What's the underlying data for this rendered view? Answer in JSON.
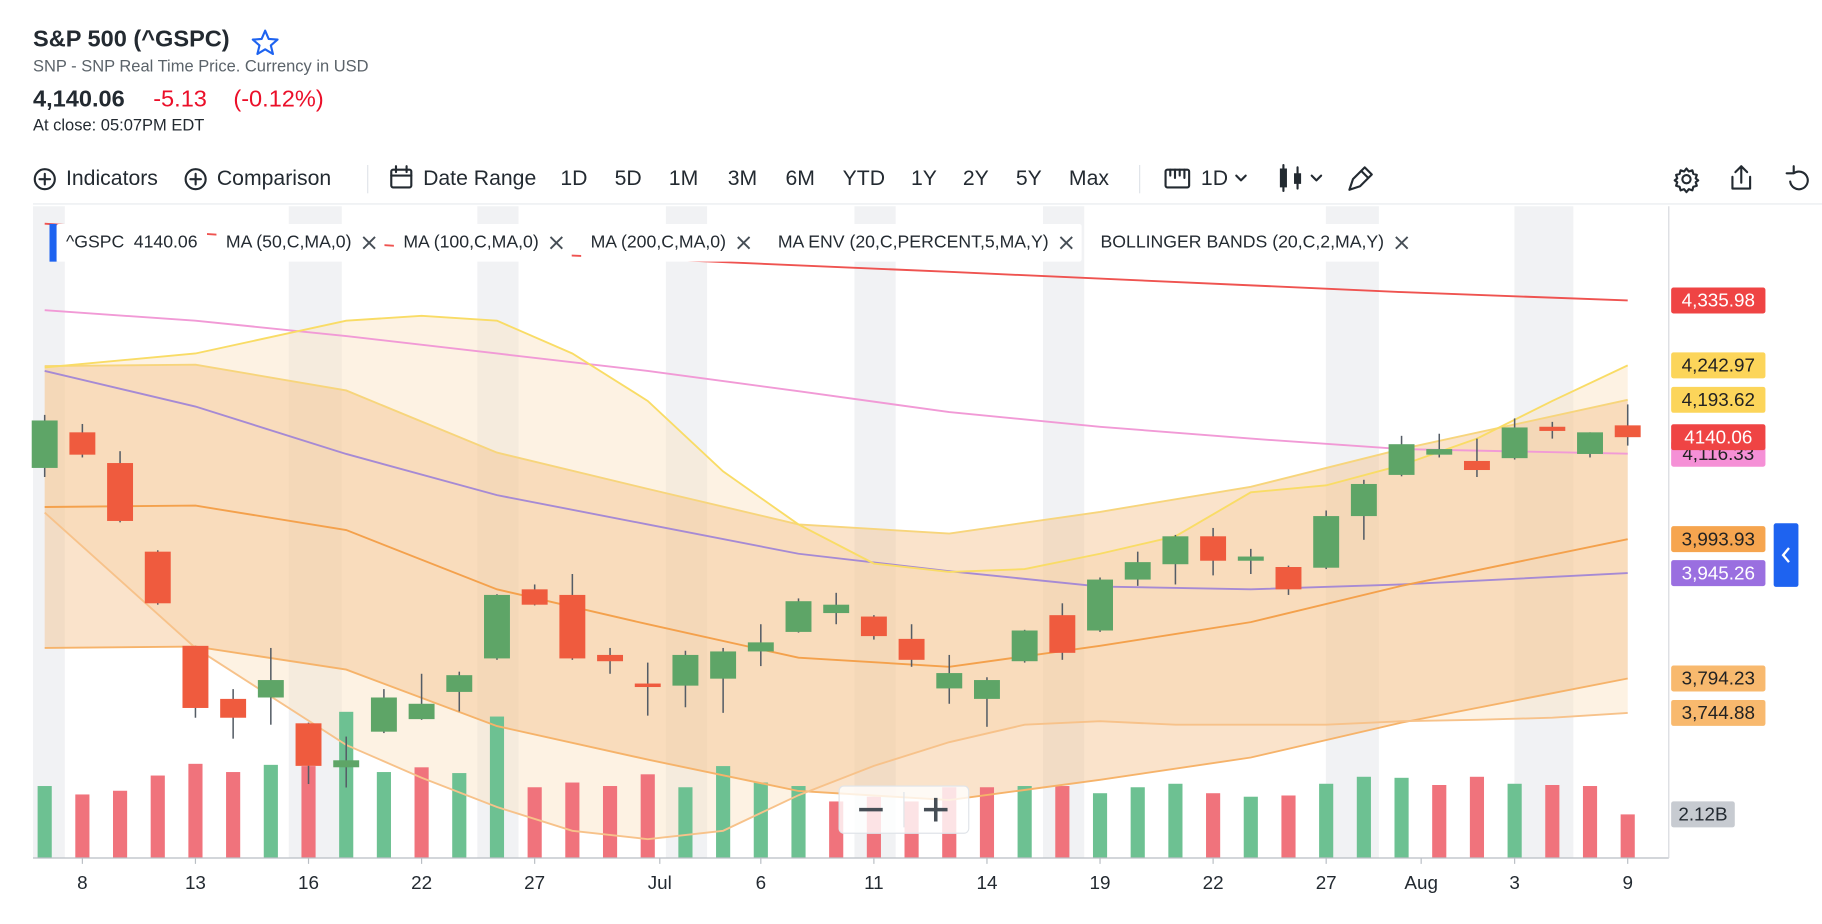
{
  "header": {
    "title": "S&P 500 (^GSPC)",
    "subtitle": "SNP - SNP Real Time Price. Currency in USD",
    "price": "4,140.06",
    "change": "-5.13",
    "change_percent": "(-0.12%)",
    "close_time": "At close: 05:07PM EDT"
  },
  "toolbar": {
    "indicators": "Indicators",
    "comparison": "Comparison",
    "date_range": "Date Range",
    "ranges": [
      "1D",
      "5D",
      "1M",
      "3M",
      "6M",
      "YTD",
      "1Y",
      "2Y",
      "5Y",
      "Max"
    ],
    "interval": "1D"
  },
  "chart_data": {
    "type": "candlestick",
    "symbol": "^GSPC",
    "xlim": [
      -0.31,
      43.09
    ],
    "ylim": [
      3537,
      4471
    ],
    "xticks": [
      {
        "value": 1,
        "label": "8"
      },
      {
        "value": 4,
        "label": "13"
      },
      {
        "value": 7,
        "label": "16"
      },
      {
        "value": 10,
        "label": "22"
      },
      {
        "value": 13,
        "label": "27"
      },
      {
        "value": 16.32,
        "label": "Jul"
      },
      {
        "value": 19,
        "label": "6"
      },
      {
        "value": 22,
        "label": "11"
      },
      {
        "value": 25,
        "label": "14"
      },
      {
        "value": 28,
        "label": "19"
      },
      {
        "value": 31,
        "label": "22"
      },
      {
        "value": 34,
        "label": "27"
      },
      {
        "value": 36.52,
        "label": "Aug"
      },
      {
        "value": 39,
        "label": "3"
      },
      {
        "value": 42,
        "label": "9"
      }
    ],
    "up_color": "#5ea567",
    "down_color": "#ef5b3e",
    "candles": {
      "open": [
        4096,
        4147,
        4103,
        3976,
        3841,
        3765,
        3767,
        3730,
        3667,
        3718,
        3736,
        3775,
        3823,
        3922,
        3914,
        3828,
        3787,
        3784,
        3794,
        3833,
        3861,
        3888,
        3883,
        3851,
        3780,
        3765,
        3819,
        3885,
        3863,
        3936,
        3958,
        3998,
        3963,
        3954,
        3953,
        4027,
        4086,
        4115,
        4106,
        4110,
        4155,
        4116,
        4157
      ],
      "high": [
        4172,
        4159,
        4120,
        3978,
        3841,
        3779,
        3838,
        3731,
        3711,
        3779,
        3801,
        3804,
        3915,
        3929,
        3944,
        3838,
        3817,
        3834,
        3838,
        3872,
        3909,
        3917,
        3885,
        3872,
        3828,
        3796,
        3864,
        3902,
        3939,
        3976,
        4000,
        4010,
        3980,
        3956,
        4035,
        4079,
        4142,
        4145,
        4138,
        4167,
        4162,
        4147,
        4187
      ],
      "low": [
        4083,
        4111,
        4018,
        3900,
        3738,
        3708,
        3728,
        3643,
        3638,
        3716,
        3735,
        3747,
        3821,
        3899,
        3821,
        3801,
        3741,
        3753,
        3745,
        3812,
        3860,
        3872,
        3850,
        3811,
        3758,
        3725,
        3817,
        3821,
        3861,
        3927,
        3929,
        3942,
        3944,
        3914,
        3951,
        3993,
        4084,
        4111,
        4083,
        4108,
        4138,
        4111,
        4128
      ],
      "close": [
        4164,
        4115,
        4020,
        3902,
        3752,
        3738,
        3792,
        3669,
        3677,
        3767,
        3758,
        3799,
        3914,
        3900,
        3823,
        3819,
        3782,
        3828,
        3833,
        3846,
        3905,
        3900,
        3855,
        3821,
        3802,
        3792,
        3863,
        3831,
        3936,
        3961,
        3998,
        3963,
        3969,
        3922,
        4027,
        4073,
        4130,
        4123,
        4093,
        4154,
        4149,
        4147,
        4140.06
      ]
    },
    "volume": {
      "values": [
        3.5,
        3.09,
        3.27,
        4.01,
        4.58,
        4.18,
        4.53,
        4.47,
        7.11,
        4.18,
        4.41,
        4.13,
        6.88,
        3.44,
        3.67,
        3.5,
        4.07,
        3.44,
        4.47,
        3.67,
        3.5,
        2.75,
        2.98,
        2.75,
        3.44,
        3.44,
        3.5,
        3.5,
        3.15,
        3.44,
        3.61,
        3.15,
        2.98,
        3.04,
        3.61,
        3.95,
        3.9,
        3.55,
        3.95,
        3.61,
        3.55,
        3.5,
        2.12
      ],
      "last_label": "2.12B",
      "lim": [
        0,
        31.7
      ],
      "up_color": "#6dc192",
      "down_color": "#f0737c",
      "label_color": "#c7cbd1"
    },
    "close_label_color": "#ef4444",
    "series": [
      {
        "name": "MA (50,C,MA,0)",
        "lines": [
          {
            "color": "#a68ad4",
            "label_color": "#9a6fe0",
            "label_text_color": "#ffffff",
            "x": [
              0,
              4,
              8,
              12,
              16,
              20,
              24,
              28,
              32,
              36,
              42
            ],
            "values": [
              4235,
              4184,
              4116,
              4057,
              4015,
              3973,
              3948,
              3926,
              3922,
              3929,
              3945.26
            ],
            "last_label": "3,945.26"
          }
        ]
      },
      {
        "name": "MA (100,C,MA,0)",
        "lines": [
          {
            "color": "#f19ad6",
            "label_color": "#f590d6",
            "label_text_color": "#222222",
            "x": [
              0,
              4,
              8,
              12,
              16,
              20,
              24,
              28,
              32,
              36,
              42
            ],
            "values": [
              4322,
              4307,
              4285,
              4260,
              4235,
              4206,
              4176,
              4155,
              4138,
              4123,
              4116.33
            ],
            "last_label": "4,116.33"
          }
        ]
      },
      {
        "name": "MA (200,C,MA,0)",
        "lines": [
          {
            "color": "#ef5350",
            "label_color": "#ef4444",
            "label_text_color": "#ffffff",
            "x": [
              0,
              12,
              24,
              36,
              42
            ],
            "values": [
              4446,
              4405,
              4377,
              4348,
              4335.98
            ],
            "last_label": "4,335.98"
          }
        ]
      },
      {
        "name": "MA ENV (20,C,PERCENT,5,MA,Y)",
        "fill": "#f5c18c",
        "lines": [
          {
            "color": "#f7d57c",
            "label_color": "#fcd55a",
            "label_text_color": "#222222",
            "x": [
              0,
              4,
              8,
              12,
              16,
              20,
              24,
              28,
              32,
              36,
              42
            ],
            "values": [
              4242,
              4244,
              4207,
              4118,
              4066,
              4015,
              4002,
              4033,
              4069,
              4123,
              4193.62
            ],
            "last_label": "4,193.62"
          },
          {
            "color": "#f4a14c",
            "label_color": "#f6a54f",
            "label_text_color": "#222222",
            "x": [
              0,
              4,
              8,
              12,
              16,
              20,
              24,
              28,
              32,
              36,
              42
            ],
            "values": [
              4040,
              4042,
              4007,
              3922,
              3872,
              3824,
              3811,
              3841,
              3875,
              3927,
              3993.93
            ],
            "last_label": "3,993.93"
          },
          {
            "color": "#f6b36a",
            "label_color": "#f8b96e",
            "label_text_color": "#222222",
            "x": [
              0,
              4,
              8,
              12,
              16,
              20,
              24,
              28,
              32,
              36,
              42
            ],
            "values": [
              3838,
              3840,
              3807,
              3726,
              3678,
              3633,
              3620,
              3649,
              3681,
              3731,
              3794.23
            ],
            "last_label": "3,794.23"
          }
        ]
      },
      {
        "name": "BOLLINGER BANDS (20,C,2,MA,Y)",
        "fill": "#fbe2c0",
        "lines": [
          {
            "color": "#f9dc66",
            "label_color": "#fcd55a",
            "label_text_color": "#222222",
            "x": [
              0,
              4,
              8,
              10,
              12,
              14,
              16,
              18,
              20,
              22,
              24,
              26,
              28,
              30,
              32,
              34,
              36,
              38,
              40,
              42
            ],
            "values": [
              4240,
              4260,
              4307,
              4314,
              4307,
              4260,
              4192,
              4091,
              4015,
              3959,
              3947,
              3951,
              3973,
              3998,
              4061,
              4071,
              4100,
              4138,
              4192,
              4242.97
            ],
            "last_label": "4,242.97"
          },
          {
            "color": "#f7c28a",
            "label_color": "#f8b96e",
            "label_text_color": "#222222",
            "x": [
              0,
              4,
              8,
              10,
              12,
              14,
              16,
              18,
              20,
              22,
              24,
              26,
              28,
              30,
              32,
              34,
              36,
              38,
              40,
              42
            ],
            "values": [
              4032,
              3838,
              3699,
              3652,
              3610,
              3576,
              3564,
              3576,
              3627,
              3669,
              3703,
              3728,
              3733,
              3728,
              3728,
              3728,
              3733,
              3735,
              3738,
              3744.88
            ],
            "last_label": "3,744.88"
          }
        ]
      }
    ]
  }
}
